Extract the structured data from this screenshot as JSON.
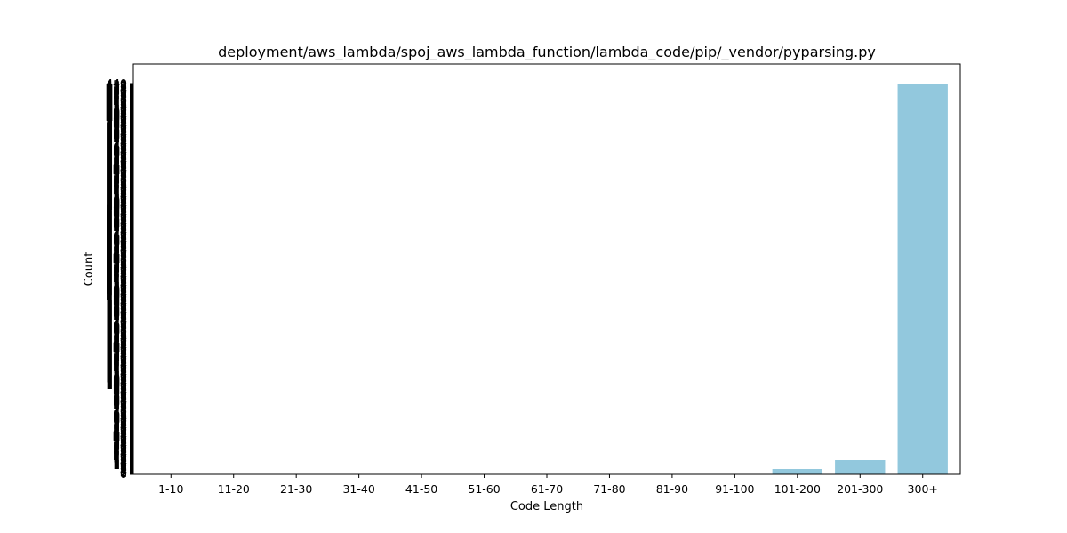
{
  "chart_data": {
    "type": "bar",
    "title": "deployment/aws_lambda/spoj_aws_lambda_function/lambda_code/pip/_vendor/pyparsing.py",
    "xlabel": "Code Length",
    "ylabel": "Count",
    "categories": [
      "1-10",
      "11-20",
      "21-30",
      "31-40",
      "41-50",
      "51-60",
      "61-70",
      "71-80",
      "81-90",
      "91-100",
      "101-200",
      "201-300",
      "300+"
    ],
    "values": [
      0,
      0,
      0,
      0,
      0,
      0,
      0,
      0,
      0,
      0,
      6,
      16,
      440
    ],
    "ylim": [
      0,
      462
    ],
    "bar_color": "#92c8dd",
    "grid": false
  }
}
